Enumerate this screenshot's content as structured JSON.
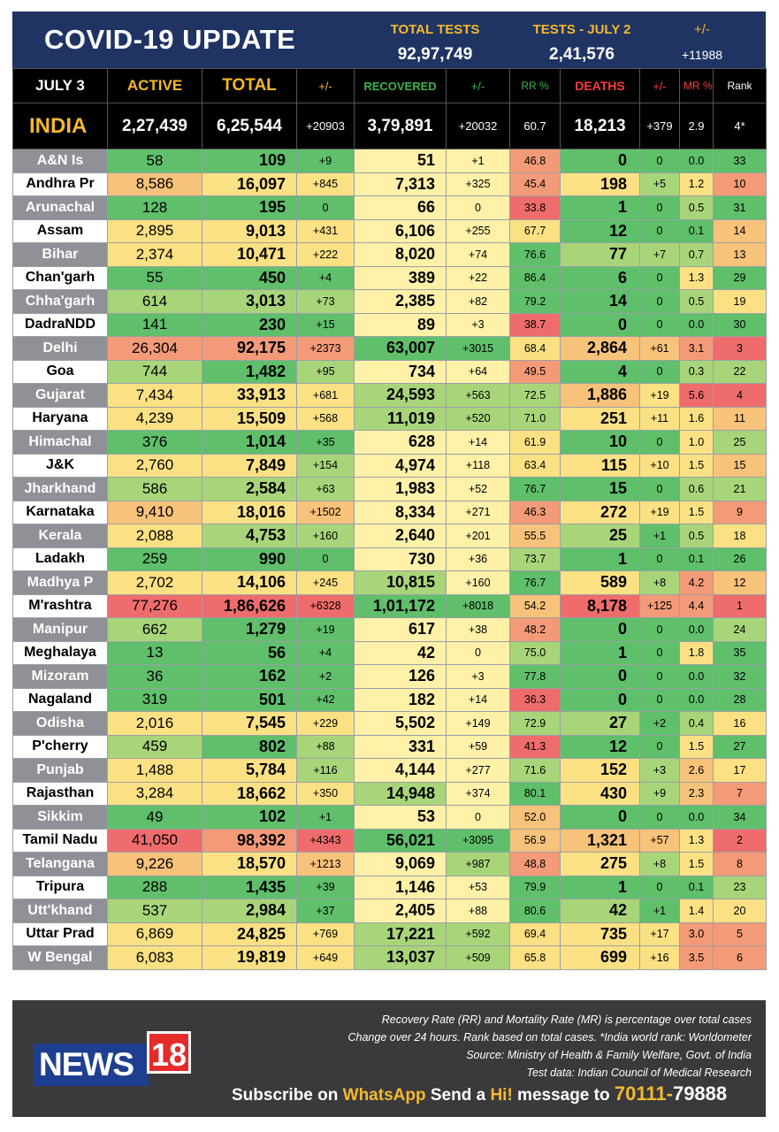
{
  "header": {
    "title": "COVID-19 UPDATE",
    "total_tests_label": "TOTAL TESTS",
    "total_tests_value": "92,97,749",
    "tests_day_label": "TESTS - JULY 2",
    "tests_day_value": "2,41,576",
    "tests_diff_label": "+/-",
    "tests_diff_value": "+11988"
  },
  "columns": {
    "date": "JULY 3",
    "active": "ACTIVE",
    "total": "TOTAL",
    "total_diff": "+/-",
    "recovered": "RECOVERED",
    "recovered_diff": "+/-",
    "rr": "RR %",
    "deaths": "DEATHS",
    "deaths_diff": "+/-",
    "mr": "MR %",
    "rank": "Rank"
  },
  "header_colors": {
    "date": "#ffffff",
    "active": "#f5b82e",
    "total": "#f5b82e",
    "total_diff": "#f5b82e",
    "recovered": "#3cb44b",
    "recovered_diff": "#3cb44b",
    "rr": "#3cb44b",
    "deaths": "#ff3b3b",
    "deaths_diff": "#ff3b3b",
    "mr": "#ff3b3b",
    "rank": "#ffffff"
  },
  "india": {
    "name": "INDIA",
    "active": "2,27,439",
    "total": "6,25,544",
    "total_diff": "+20903",
    "recovered": "3,79,891",
    "recovered_diff": "+20032",
    "rr": "60.7",
    "deaths": "18,213",
    "deaths_diff": "+379",
    "mr": "2.9",
    "rank": "4*"
  },
  "rows": [
    [
      "A&N Is",
      "58",
      "109",
      "+9",
      "51",
      "+1",
      "46.8",
      "0",
      "0",
      "0.0",
      "33"
    ],
    [
      "Andhra Pr",
      "8,586",
      "16,097",
      "+845",
      "7,313",
      "+325",
      "45.4",
      "198",
      "+5",
      "1.2",
      "10"
    ],
    [
      "Arunachal",
      "128",
      "195",
      "0",
      "66",
      "0",
      "33.8",
      "1",
      "0",
      "0.5",
      "31"
    ],
    [
      "Assam",
      "2,895",
      "9,013",
      "+431",
      "6,106",
      "+255",
      "67.7",
      "12",
      "0",
      "0.1",
      "14"
    ],
    [
      "Bihar",
      "2,374",
      "10,471",
      "+222",
      "8,020",
      "+74",
      "76.6",
      "77",
      "+7",
      "0.7",
      "13"
    ],
    [
      "Chan'garh",
      "55",
      "450",
      "+4",
      "389",
      "+22",
      "86.4",
      "6",
      "0",
      "1.3",
      "29"
    ],
    [
      "Chha'garh",
      "614",
      "3,013",
      "+73",
      "2,385",
      "+82",
      "79.2",
      "14",
      "0",
      "0.5",
      "19"
    ],
    [
      "DadraNDD",
      "141",
      "230",
      "+15",
      "89",
      "+3",
      "38.7",
      "0",
      "0",
      "0.0",
      "30"
    ],
    [
      "Delhi",
      "26,304",
      "92,175",
      "+2373",
      "63,007",
      "+3015",
      "68.4",
      "2,864",
      "+61",
      "3.1",
      "3"
    ],
    [
      "Goa",
      "744",
      "1,482",
      "+95",
      "734",
      "+64",
      "49.5",
      "4",
      "0",
      "0.3",
      "22"
    ],
    [
      "Gujarat",
      "7,434",
      "33,913",
      "+681",
      "24,593",
      "+563",
      "72.5",
      "1,886",
      "+19",
      "5.6",
      "4"
    ],
    [
      "Haryana",
      "4,239",
      "15,509",
      "+568",
      "11,019",
      "+520",
      "71.0",
      "251",
      "+11",
      "1.6",
      "11"
    ],
    [
      "Himachal",
      "376",
      "1,014",
      "+35",
      "628",
      "+14",
      "61.9",
      "10",
      "0",
      "1.0",
      "25"
    ],
    [
      "J&K",
      "2,760",
      "7,849",
      "+154",
      "4,974",
      "+118",
      "63.4",
      "115",
      "+10",
      "1.5",
      "15"
    ],
    [
      "Jharkhand",
      "586",
      "2,584",
      "+63",
      "1,983",
      "+52",
      "76.7",
      "15",
      "0",
      "0.6",
      "21"
    ],
    [
      "Karnataka",
      "9,410",
      "18,016",
      "+1502",
      "8,334",
      "+271",
      "46.3",
      "272",
      "+19",
      "1.5",
      "9"
    ],
    [
      "Kerala",
      "2,088",
      "4,753",
      "+160",
      "2,640",
      "+201",
      "55.5",
      "25",
      "+1",
      "0.5",
      "18"
    ],
    [
      "Ladakh",
      "259",
      "990",
      "0",
      "730",
      "+36",
      "73.7",
      "1",
      "0",
      "0.1",
      "26"
    ],
    [
      "Madhya P",
      "2,702",
      "14,106",
      "+245",
      "10,815",
      "+160",
      "76.7",
      "589",
      "+8",
      "4.2",
      "12"
    ],
    [
      "M'rashtra",
      "77,276",
      "1,86,626",
      "+6328",
      "1,01,172",
      "+8018",
      "54.2",
      "8,178",
      "+125",
      "4.4",
      "1"
    ],
    [
      "Manipur",
      "662",
      "1,279",
      "+19",
      "617",
      "+38",
      "48.2",
      "0",
      "0",
      "0.0",
      "24"
    ],
    [
      "Meghalaya",
      "13",
      "56",
      "+4",
      "42",
      "0",
      "75.0",
      "1",
      "0",
      "1.8",
      "35"
    ],
    [
      "Mizoram",
      "36",
      "162",
      "+2",
      "126",
      "+3",
      "77.8",
      "0",
      "0",
      "0.0",
      "32"
    ],
    [
      "Nagaland",
      "319",
      "501",
      "+42",
      "182",
      "+14",
      "36.3",
      "0",
      "0",
      "0.0",
      "28"
    ],
    [
      "Odisha",
      "2,016",
      "7,545",
      "+229",
      "5,502",
      "+149",
      "72.9",
      "27",
      "+2",
      "0.4",
      "16"
    ],
    [
      "P'cherry",
      "459",
      "802",
      "+88",
      "331",
      "+59",
      "41.3",
      "12",
      "0",
      "1.5",
      "27"
    ],
    [
      "Punjab",
      "1,488",
      "5,784",
      "+116",
      "4,144",
      "+277",
      "71.6",
      "152",
      "+3",
      "2.6",
      "17"
    ],
    [
      "Rajasthan",
      "3,284",
      "18,662",
      "+350",
      "14,948",
      "+374",
      "80.1",
      "430",
      "+9",
      "2.3",
      "7"
    ],
    [
      "Sikkim",
      "49",
      "102",
      "+1",
      "53",
      "0",
      "52.0",
      "0",
      "0",
      "0.0",
      "34"
    ],
    [
      "Tamil Nadu",
      "41,050",
      "98,392",
      "+4343",
      "56,021",
      "+3095",
      "56.9",
      "1,321",
      "+57",
      "1.3",
      "2"
    ],
    [
      "Telangana",
      "9,226",
      "18,570",
      "+1213",
      "9,069",
      "+987",
      "48.8",
      "275",
      "+8",
      "1.5",
      "8"
    ],
    [
      "Tripura",
      "288",
      "1,435",
      "+39",
      "1,146",
      "+53",
      "79.9",
      "1",
      "0",
      "0.1",
      "23"
    ],
    [
      "Utt'khand",
      "537",
      "2,984",
      "+37",
      "2,405",
      "+88",
      "80.6",
      "42",
      "+1",
      "1.4",
      "20"
    ],
    [
      "Uttar Prad",
      "6,869",
      "24,825",
      "+769",
      "17,221",
      "+592",
      "69.4",
      "735",
      "+17",
      "3.0",
      "5"
    ],
    [
      "W Bengal",
      "6,083",
      "19,819",
      "+649",
      "13,037",
      "+509",
      "65.8",
      "699",
      "+16",
      "3.5",
      "6"
    ]
  ],
  "palette": {
    "green": "#5fbf6b",
    "light_green": "#a9d57a",
    "yellow": "#fbe183",
    "light_yellow": "#fff1a8",
    "orange": "#f7c27a",
    "salmon": "#f39a78",
    "red": "#ef6c6c"
  },
  "footer": {
    "note1": "Recovery Rate (RR) and Mortality Rate (MR) is percentage over total cases",
    "note2": "Change over 24 hours. Rank based on total cases. *India world rank: Worldometer",
    "note3": "Source: Ministry of Health & Family Welfare, Govt. of India",
    "note4": "Test data: Indian Council of Medical Research",
    "logo_news": "NEWS",
    "logo_num": "18",
    "sub_pre": "Subscribe on ",
    "sub_app": "WhatsApp",
    "sub_mid": " Send a ",
    "sub_hi": "Hi!",
    "sub_post": " message to ",
    "sub_num_a": "70111-",
    "sub_num_b": "79888"
  }
}
